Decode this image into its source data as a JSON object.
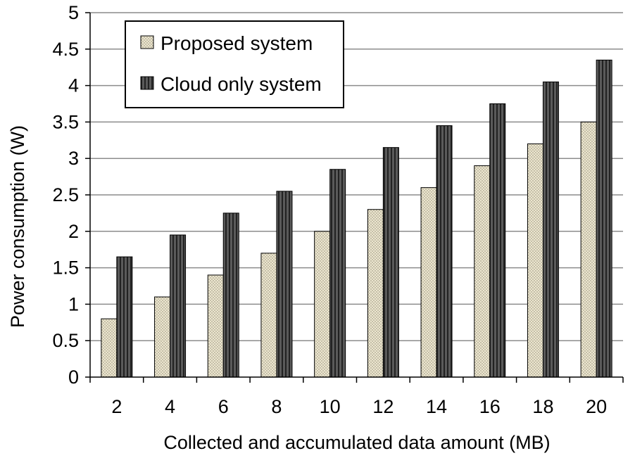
{
  "chart_data": {
    "type": "bar",
    "title": "",
    "xlabel": "Collected and accumulated data amount (MB)",
    "ylabel": "Power consumption (W)",
    "categories": [
      "2",
      "4",
      "6",
      "8",
      "10",
      "12",
      "14",
      "16",
      "18",
      "20"
    ],
    "series": [
      {
        "name": "Proposed system",
        "values": [
          0.8,
          1.1,
          1.4,
          1.7,
          2.0,
          2.3,
          2.6,
          2.9,
          3.2,
          3.5
        ]
      },
      {
        "name": "Cloud only system",
        "values": [
          1.65,
          1.95,
          2.25,
          2.55,
          2.85,
          3.15,
          3.45,
          3.75,
          4.05,
          4.35
        ]
      }
    ],
    "ylim": [
      0,
      5
    ],
    "yticks": [
      "0",
      "0.5",
      "1",
      "1.5",
      "2",
      "2.5",
      "3",
      "3.5",
      "4",
      "4.5",
      "5"
    ],
    "grid": "horizontal",
    "legend_position": "top-left",
    "colors": {
      "proposed_fill": "#ece6cf",
      "cloud_fill": "#555555",
      "grid": "#8c8c8c"
    }
  }
}
